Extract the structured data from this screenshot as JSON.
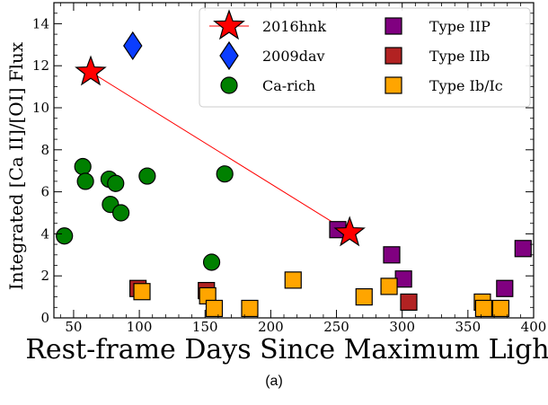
{
  "chart_data": {
    "type": "scatter",
    "xlabel": "Rest-frame Days Since Maximum Light",
    "ylabel": "Integrated [Ca II]/[OI] Flux",
    "xlim": [
      35,
      400
    ],
    "ylim": [
      0,
      15
    ],
    "x_ticks": [
      50,
      100,
      150,
      200,
      250,
      300,
      350,
      400
    ],
    "y_ticks": [
      0,
      2,
      4,
      6,
      8,
      10,
      12,
      14
    ],
    "series": [
      {
        "name": "2016hnk",
        "marker": "star",
        "color": "#ff0000",
        "connected": true,
        "points": [
          {
            "x": 63,
            "y": 11.7
          },
          {
            "x": 260,
            "y": 4.05
          }
        ]
      },
      {
        "name": "2009dav",
        "marker": "diamond",
        "color": "#0a3dff",
        "connected": false,
        "points": [
          {
            "x": 95,
            "y": 12.95
          }
        ]
      },
      {
        "name": "Ca-rich",
        "marker": "circle",
        "color": "#008000",
        "connected": false,
        "points": [
          {
            "x": 43,
            "y": 3.9
          },
          {
            "x": 57,
            "y": 7.2
          },
          {
            "x": 59,
            "y": 6.5
          },
          {
            "x": 77,
            "y": 6.6
          },
          {
            "x": 78,
            "y": 5.4
          },
          {
            "x": 82,
            "y": 6.4
          },
          {
            "x": 86,
            "y": 5.0
          },
          {
            "x": 106,
            "y": 6.75
          },
          {
            "x": 155,
            "y": 2.65
          },
          {
            "x": 165,
            "y": 6.85
          }
        ]
      },
      {
        "name": "Type IIP",
        "marker": "square",
        "color": "#800080",
        "connected": false,
        "points": [
          {
            "x": 251,
            "y": 4.2
          },
          {
            "x": 292,
            "y": 3.0
          },
          {
            "x": 301,
            "y": 1.85
          },
          {
            "x": 378,
            "y": 1.4
          },
          {
            "x": 392,
            "y": 3.3
          }
        ]
      },
      {
        "name": "Type IIb",
        "marker": "square",
        "color": "#b22222",
        "connected": false,
        "points": [
          {
            "x": 99,
            "y": 1.4
          },
          {
            "x": 151,
            "y": 1.3
          },
          {
            "x": 305,
            "y": 0.75
          }
        ]
      },
      {
        "name": "Type Ib/Ic",
        "marker": "square",
        "color": "#ffa500",
        "connected": false,
        "points": [
          {
            "x": 102,
            "y": 1.25
          },
          {
            "x": 152,
            "y": 1.05
          },
          {
            "x": 157,
            "y": 0.45
          },
          {
            "x": 184,
            "y": 0.45
          },
          {
            "x": 217,
            "y": 1.8
          },
          {
            "x": 271,
            "y": 1.0
          },
          {
            "x": 290,
            "y": 1.5
          },
          {
            "x": 361,
            "y": 0.75
          },
          {
            "x": 362,
            "y": 0.45
          },
          {
            "x": 375,
            "y": 0.45
          }
        ]
      }
    ],
    "legend_position": "top-right",
    "legend_columns": 2,
    "grid": false
  },
  "caption": "(a)"
}
